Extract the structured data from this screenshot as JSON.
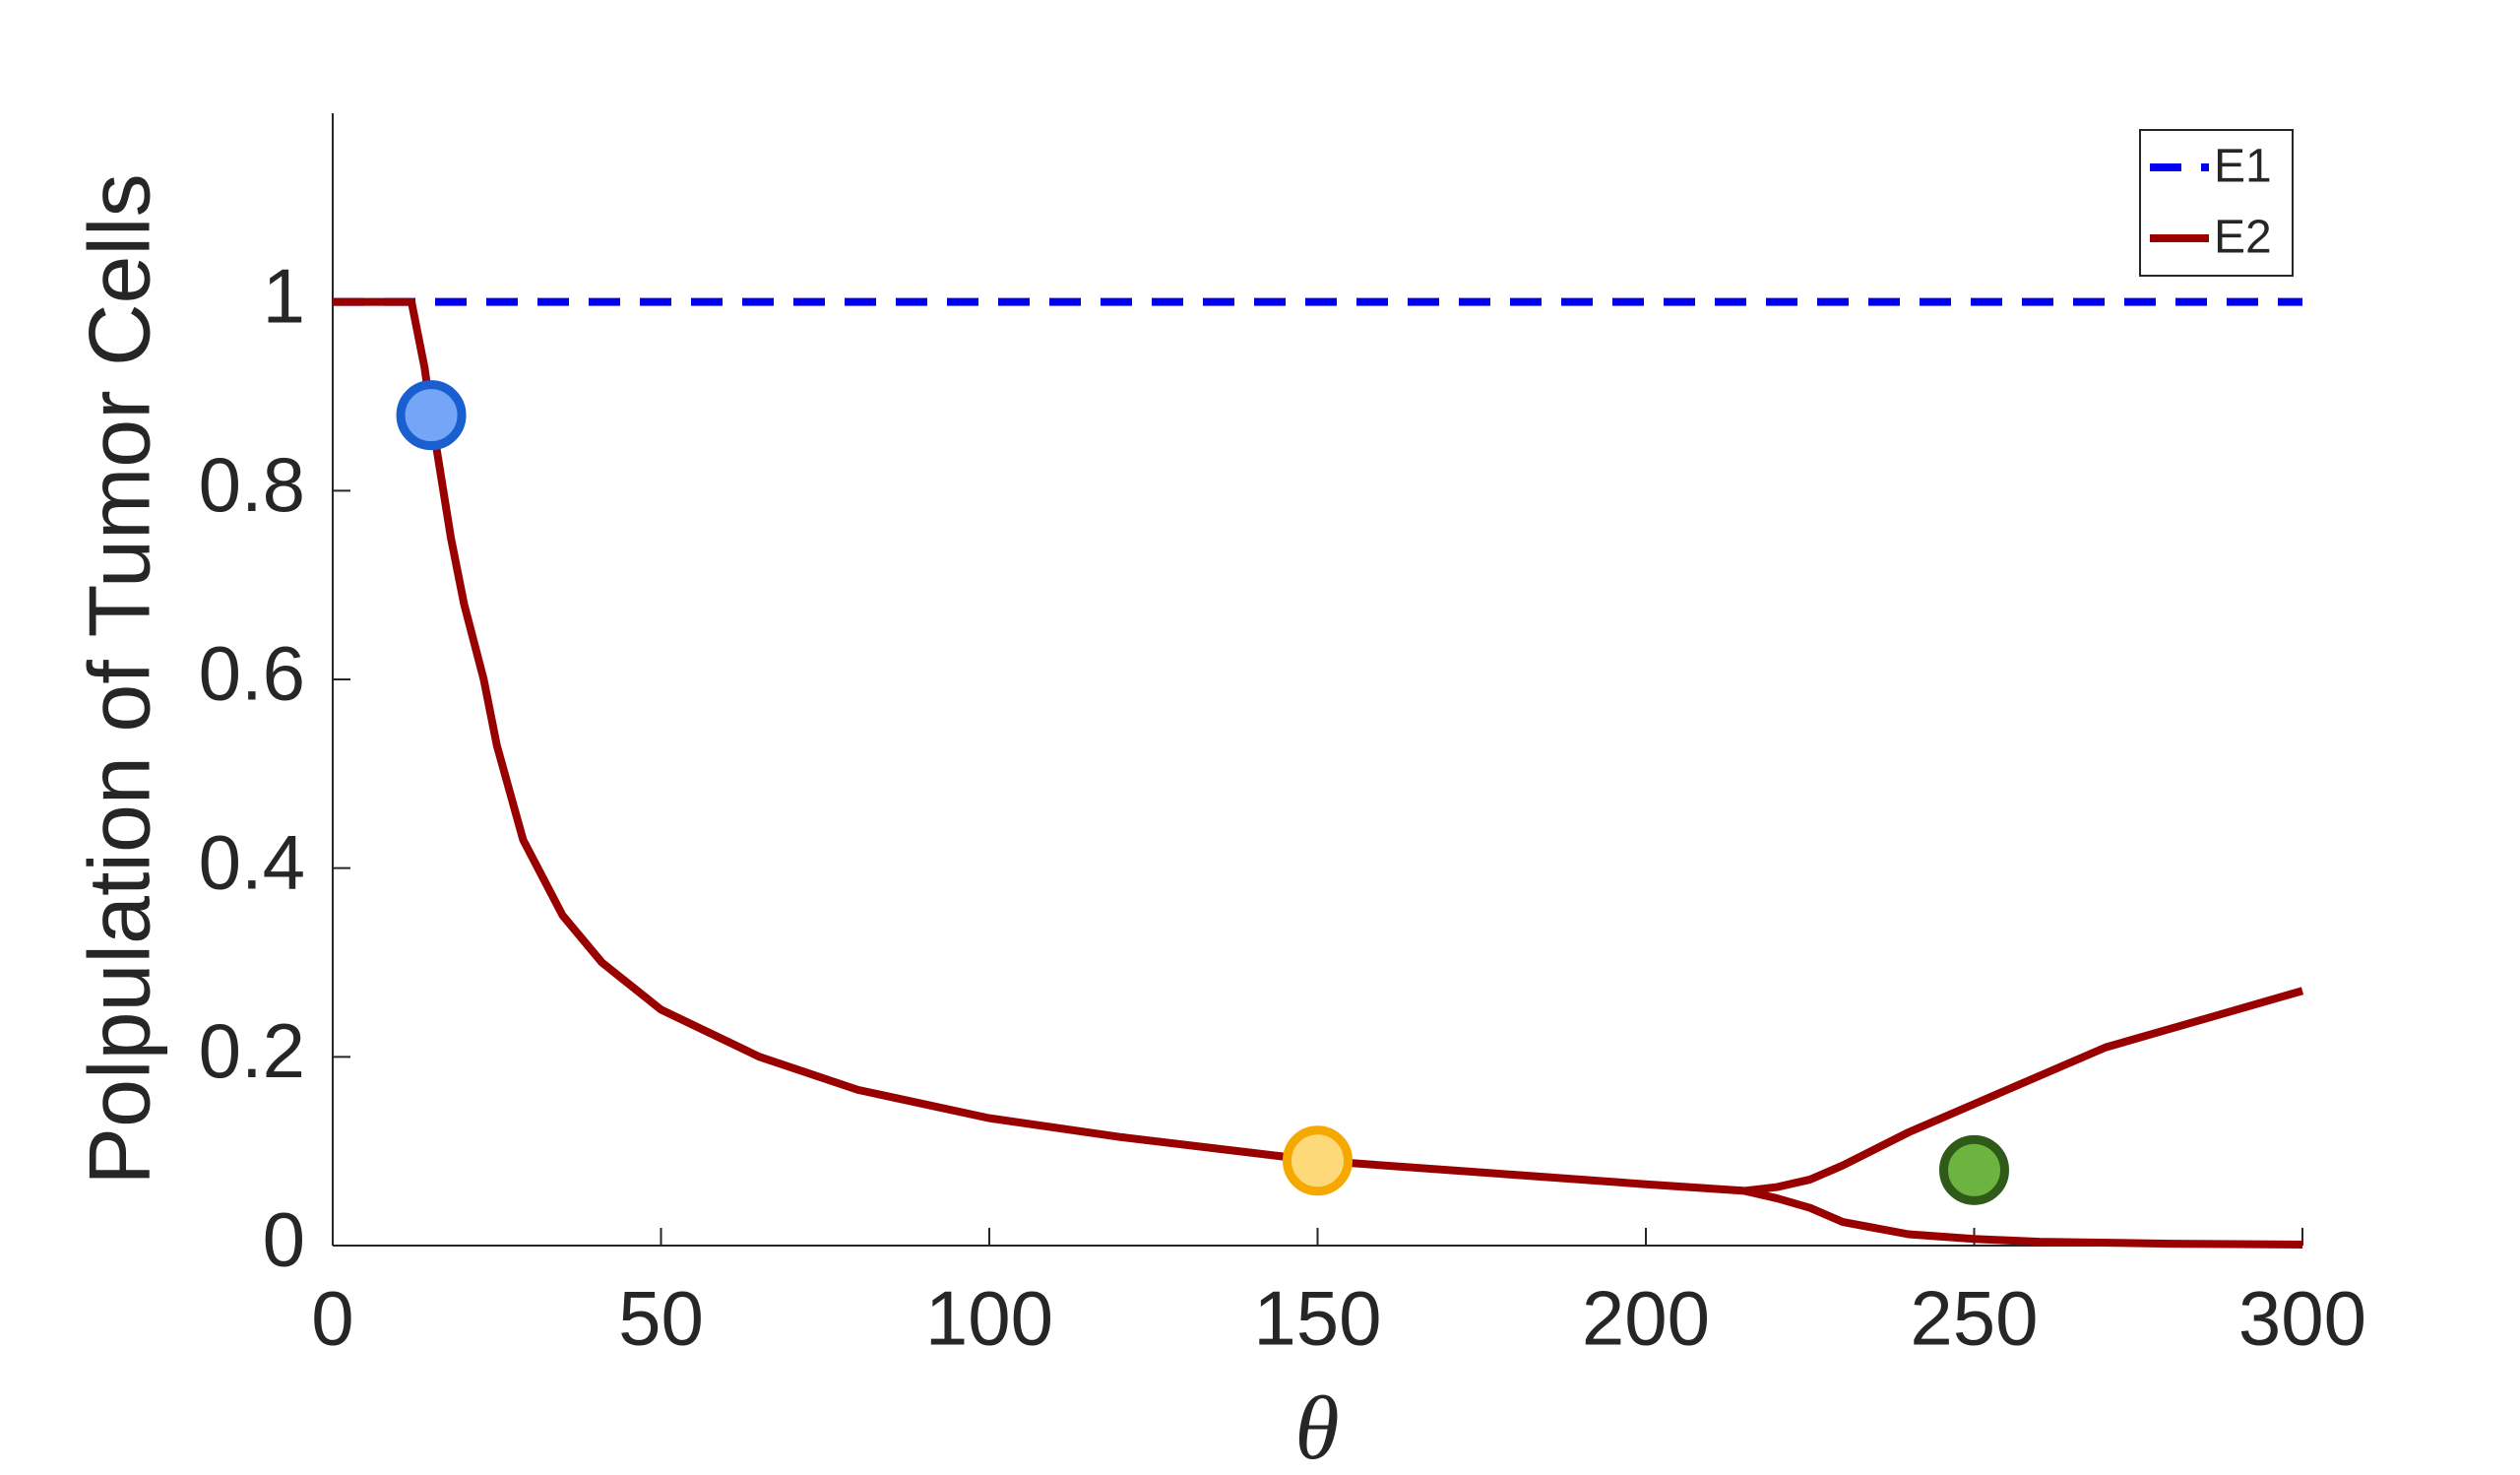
{
  "chart_data": {
    "type": "line",
    "xlabel": "θ",
    "ylabel": "Polpulation of Tumor Cells",
    "xlim": [
      0,
      300
    ],
    "xticks": [
      0,
      50,
      100,
      150,
      200,
      250,
      300
    ],
    "ylim": [
      0,
      1.2
    ],
    "yticks": [
      0,
      0.2,
      0.4,
      0.6,
      0.8,
      1
    ],
    "legend": "upper right",
    "series": [
      {
        "name": "E1",
        "color": "#0000ee",
        "dashed": true,
        "x": [
          0,
          300
        ],
        "values": [
          1,
          1
        ]
      },
      {
        "name": "E2",
        "color": "#990000",
        "dashed": false,
        "x": [
          0,
          12,
          14,
          15,
          18,
          20,
          23,
          25,
          29,
          35,
          41,
          50,
          65,
          80,
          100,
          120,
          150,
          180,
          200,
          215,
          220,
          225,
          230,
          240,
          250,
          260,
          270,
          280,
          290,
          300,
          null,
          215,
          220,
          225,
          230,
          240,
          250,
          260,
          280,
          300
        ],
        "values": [
          1,
          1,
          0.93,
          0.88,
          0.75,
          0.68,
          0.6,
          0.53,
          0.43,
          0.35,
          0.3,
          0.25,
          0.2,
          0.165,
          0.135,
          0.115,
          0.09,
          0.075,
          0.065,
          0.058,
          0.062,
          0.07,
          0.085,
          0.12,
          0.15,
          0.18,
          0.21,
          0.23,
          0.25,
          0.27,
          null,
          0.058,
          0.05,
          0.04,
          0.025,
          0.012,
          0.007,
          0.004,
          0.002,
          0.001
        ]
      }
    ],
    "markers": [
      {
        "x": 15,
        "y": 0.88,
        "color": "#74a5f7",
        "edge": "#1a5fd0"
      },
      {
        "x": 150,
        "y": 0.09,
        "color": "#fdd97a",
        "edge": "#f5a800"
      },
      {
        "x": 250,
        "y": 0.08,
        "color": "#6db33f",
        "edge": "#2f5a1a"
      }
    ]
  }
}
